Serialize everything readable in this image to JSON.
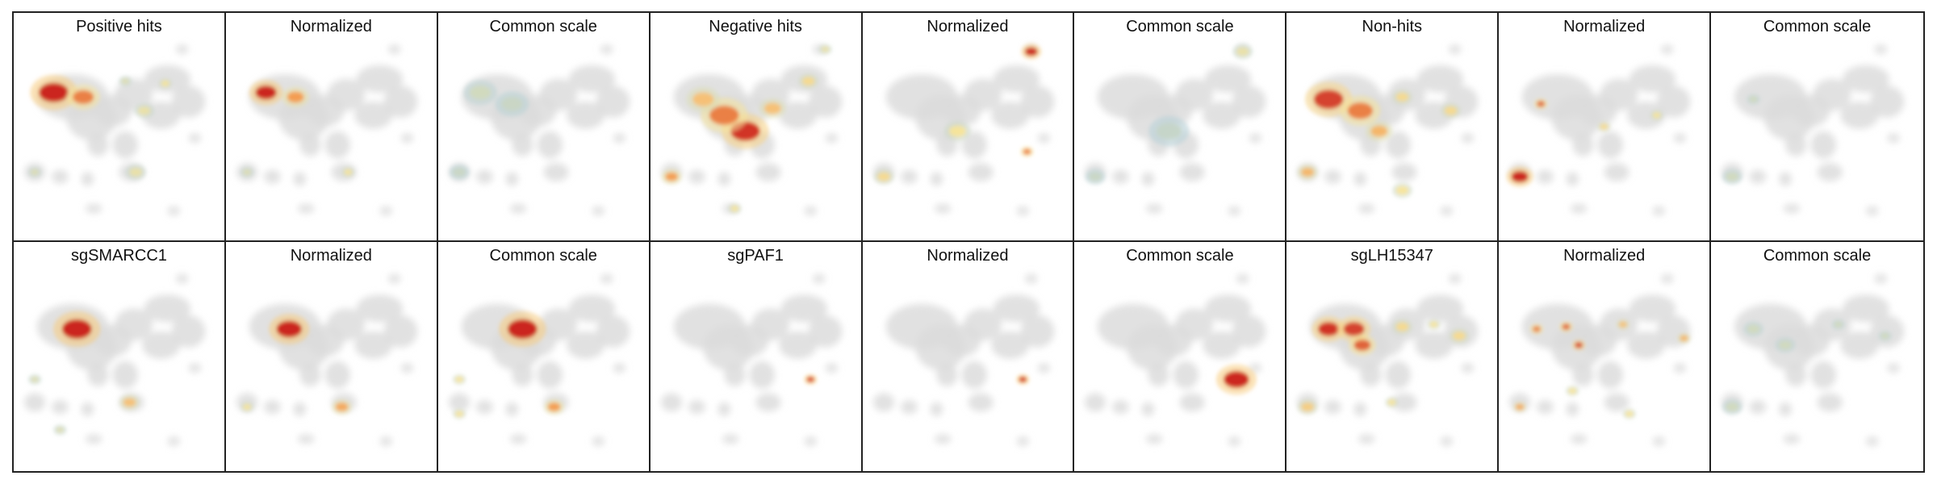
{
  "panels": [
    {
      "title": "Positive hits",
      "mode": "raw",
      "hotspots": [
        {
          "c": [
            0.19,
            0.35
          ],
          "r": 0.07,
          "i": 1.0
        },
        {
          "c": [
            0.33,
            0.37
          ],
          "r": 0.05,
          "i": 0.7
        },
        {
          "c": [
            0.53,
            0.3
          ],
          "r": 0.02,
          "i": 0.2
        },
        {
          "c": [
            0.72,
            0.31
          ],
          "r": 0.02,
          "i": 0.3
        },
        {
          "c": [
            0.62,
            0.43
          ],
          "r": 0.03,
          "i": 0.25
        },
        {
          "c": [
            0.58,
            0.7
          ],
          "r": 0.03,
          "i": 0.25
        },
        {
          "c": [
            0.1,
            0.7
          ],
          "r": 0.02,
          "i": 0.2
        }
      ]
    },
    {
      "title": "Normalized",
      "mode": "norm",
      "hotspots": [
        {
          "c": [
            0.19,
            0.35
          ],
          "r": 0.05,
          "i": 1.0
        },
        {
          "c": [
            0.33,
            0.37
          ],
          "r": 0.04,
          "i": 0.6
        },
        {
          "c": [
            0.58,
            0.7
          ],
          "r": 0.02,
          "i": 0.3
        },
        {
          "c": [
            0.1,
            0.7
          ],
          "r": 0.02,
          "i": 0.2
        }
      ]
    },
    {
      "title": "Common scale",
      "mode": "common",
      "hotspots": [
        {
          "c": [
            0.2,
            0.35
          ],
          "r": 0.05,
          "i": 0.15
        },
        {
          "c": [
            0.35,
            0.4
          ],
          "r": 0.05,
          "i": 0.12
        },
        {
          "c": [
            0.1,
            0.7
          ],
          "r": 0.03,
          "i": 0.12
        }
      ]
    },
    {
      "title": "Negative hits",
      "mode": "raw",
      "hotspots": [
        {
          "c": [
            0.45,
            0.52
          ],
          "r": 0.07,
          "i": 0.95
        },
        {
          "c": [
            0.35,
            0.45
          ],
          "r": 0.07,
          "i": 0.7
        },
        {
          "c": [
            0.25,
            0.38
          ],
          "r": 0.05,
          "i": 0.45
        },
        {
          "c": [
            0.58,
            0.42
          ],
          "r": 0.04,
          "i": 0.45
        },
        {
          "c": [
            0.75,
            0.3
          ],
          "r": 0.03,
          "i": 0.35
        },
        {
          "c": [
            0.1,
            0.72
          ],
          "r": 0.03,
          "i": 0.6
        },
        {
          "c": [
            0.83,
            0.16
          ],
          "r": 0.02,
          "i": 0.25
        },
        {
          "c": [
            0.4,
            0.86
          ],
          "r": 0.02,
          "i": 0.3
        }
      ]
    },
    {
      "title": "Normalized",
      "mode": "norm",
      "hotspots": [
        {
          "c": [
            0.8,
            0.17
          ],
          "r": 0.03,
          "i": 1.0
        },
        {
          "c": [
            0.78,
            0.61
          ],
          "r": 0.02,
          "i": 0.7
        },
        {
          "c": [
            0.1,
            0.72
          ],
          "r": 0.03,
          "i": 0.35
        },
        {
          "c": [
            0.45,
            0.52
          ],
          "r": 0.04,
          "i": 0.3
        }
      ]
    },
    {
      "title": "Common scale",
      "mode": "common",
      "hotspots": [
        {
          "c": [
            0.8,
            0.17
          ],
          "r": 0.03,
          "i": 0.25
        },
        {
          "c": [
            0.45,
            0.52
          ],
          "r": 0.06,
          "i": 0.1
        },
        {
          "c": [
            0.1,
            0.72
          ],
          "r": 0.03,
          "i": 0.12
        }
      ]
    },
    {
      "title": "Non-hits",
      "mode": "raw",
      "hotspots": [
        {
          "c": [
            0.2,
            0.38
          ],
          "r": 0.07,
          "i": 0.9
        },
        {
          "c": [
            0.35,
            0.43
          ],
          "r": 0.06,
          "i": 0.7
        },
        {
          "c": [
            0.44,
            0.52
          ],
          "r": 0.04,
          "i": 0.5
        },
        {
          "c": [
            0.55,
            0.37
          ],
          "r": 0.03,
          "i": 0.35
        },
        {
          "c": [
            0.78,
            0.43
          ],
          "r": 0.03,
          "i": 0.35
        },
        {
          "c": [
            0.1,
            0.7
          ],
          "r": 0.03,
          "i": 0.5
        },
        {
          "c": [
            0.55,
            0.78
          ],
          "r": 0.03,
          "i": 0.3
        }
      ]
    },
    {
      "title": "Normalized",
      "mode": "norm",
      "hotspots": [
        {
          "c": [
            0.1,
            0.72
          ],
          "r": 0.04,
          "i": 1.0
        },
        {
          "c": [
            0.2,
            0.4
          ],
          "r": 0.02,
          "i": 0.8
        },
        {
          "c": [
            0.5,
            0.5
          ],
          "r": 0.02,
          "i": 0.35
        },
        {
          "c": [
            0.75,
            0.45
          ],
          "r": 0.02,
          "i": 0.3
        }
      ]
    },
    {
      "title": "Common scale",
      "mode": "common",
      "hotspots": [
        {
          "c": [
            0.2,
            0.38
          ],
          "r": 0.02,
          "i": 0.15
        },
        {
          "c": [
            0.1,
            0.72
          ],
          "r": 0.03,
          "i": 0.15
        }
      ]
    },
    {
      "title": "sgSMARCC1",
      "mode": "raw",
      "hotspots": [
        {
          "c": [
            0.3,
            0.38
          ],
          "r": 0.07,
          "i": 1.0
        },
        {
          "c": [
            0.55,
            0.7
          ],
          "r": 0.03,
          "i": 0.45
        },
        {
          "c": [
            0.1,
            0.6
          ],
          "r": 0.02,
          "i": 0.2
        },
        {
          "c": [
            0.22,
            0.82
          ],
          "r": 0.02,
          "i": 0.2
        }
      ]
    },
    {
      "title": "Normalized",
      "mode": "norm",
      "hotspots": [
        {
          "c": [
            0.3,
            0.38
          ],
          "r": 0.06,
          "i": 1.0
        },
        {
          "c": [
            0.55,
            0.72
          ],
          "r": 0.03,
          "i": 0.55
        },
        {
          "c": [
            0.1,
            0.72
          ],
          "r": 0.02,
          "i": 0.3
        }
      ]
    },
    {
      "title": "Common scale",
      "mode": "common",
      "hotspots": [
        {
          "c": [
            0.4,
            0.38
          ],
          "r": 0.07,
          "i": 1.0
        },
        {
          "c": [
            0.55,
            0.72
          ],
          "r": 0.03,
          "i": 0.6
        },
        {
          "c": [
            0.1,
            0.6
          ],
          "r": 0.02,
          "i": 0.3
        },
        {
          "c": [
            0.1,
            0.75
          ],
          "r": 0.02,
          "i": 0.3
        }
      ]
    },
    {
      "title": "sgPAF1",
      "mode": "raw",
      "hotspots": [
        {
          "c": [
            0.76,
            0.6
          ],
          "r": 0.02,
          "i": 0.9
        }
      ]
    },
    {
      "title": "Normalized",
      "mode": "norm",
      "hotspots": [
        {
          "c": [
            0.76,
            0.6
          ],
          "r": 0.02,
          "i": 0.95
        }
      ]
    },
    {
      "title": "Common scale",
      "mode": "common",
      "hotspots": [
        {
          "c": [
            0.77,
            0.6
          ],
          "r": 0.06,
          "i": 1.0
        }
      ]
    },
    {
      "title": "sgLH15347",
      "mode": "raw",
      "hotspots": [
        {
          "c": [
            0.2,
            0.38
          ],
          "r": 0.05,
          "i": 0.95
        },
        {
          "c": [
            0.32,
            0.38
          ],
          "r": 0.05,
          "i": 0.9
        },
        {
          "c": [
            0.36,
            0.45
          ],
          "r": 0.04,
          "i": 0.8
        },
        {
          "c": [
            0.55,
            0.37
          ],
          "r": 0.03,
          "i": 0.35
        },
        {
          "c": [
            0.82,
            0.41
          ],
          "r": 0.03,
          "i": 0.35
        },
        {
          "c": [
            0.7,
            0.36
          ],
          "r": 0.02,
          "i": 0.3
        },
        {
          "c": [
            0.1,
            0.72
          ],
          "r": 0.03,
          "i": 0.4
        },
        {
          "c": [
            0.5,
            0.7
          ],
          "r": 0.02,
          "i": 0.3
        }
      ]
    },
    {
      "title": "Normalized",
      "mode": "norm",
      "hotspots": [
        {
          "c": [
            0.18,
            0.38
          ],
          "r": 0.02,
          "i": 0.7
        },
        {
          "c": [
            0.32,
            0.37
          ],
          "r": 0.02,
          "i": 0.8
        },
        {
          "c": [
            0.38,
            0.45
          ],
          "r": 0.02,
          "i": 0.9
        },
        {
          "c": [
            0.59,
            0.36
          ],
          "r": 0.02,
          "i": 0.45
        },
        {
          "c": [
            0.88,
            0.42
          ],
          "r": 0.02,
          "i": 0.5
        },
        {
          "c": [
            0.1,
            0.72
          ],
          "r": 0.02,
          "i": 0.55
        },
        {
          "c": [
            0.35,
            0.65
          ],
          "r": 0.02,
          "i": 0.3
        },
        {
          "c": [
            0.62,
            0.75
          ],
          "r": 0.02,
          "i": 0.3
        }
      ]
    },
    {
      "title": "Common scale",
      "mode": "common",
      "hotspots": [
        {
          "c": [
            0.2,
            0.38
          ],
          "r": 0.03,
          "i": 0.15
        },
        {
          "c": [
            0.35,
            0.45
          ],
          "r": 0.03,
          "i": 0.15
        },
        {
          "c": [
            0.6,
            0.36
          ],
          "r": 0.02,
          "i": 0.15
        },
        {
          "c": [
            0.82,
            0.41
          ],
          "r": 0.02,
          "i": 0.15
        },
        {
          "c": [
            0.1,
            0.72
          ],
          "r": 0.03,
          "i": 0.15
        }
      ]
    }
  ]
}
